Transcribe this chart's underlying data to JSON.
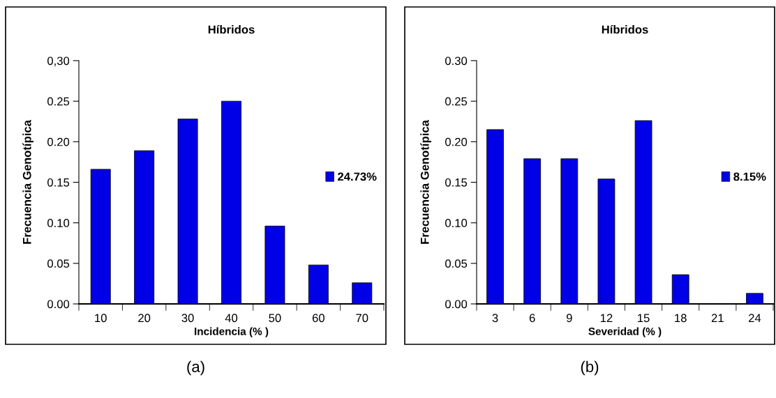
{
  "chart_data": [
    {
      "type": "bar",
      "title": "Híbridos",
      "xlabel": "Incidencia (% )",
      "ylabel": "Frecuencia Genotípica",
      "categories": [
        "10",
        "20",
        "30",
        "40",
        "50",
        "60",
        "70"
      ],
      "series": [
        {
          "name": "24.73%",
          "color": "#0000e6",
          "values": [
            0.166,
            0.189,
            0.228,
            0.25,
            0.096,
            0.048,
            0.026
          ]
        }
      ],
      "ylim": [
        0,
        0.3
      ],
      "yticks": [
        {
          "value": 0.3,
          "label": "0,30"
        },
        {
          "value": 0.25,
          "label": "0.25"
        },
        {
          "value": 0.2,
          "label": "0.20"
        },
        {
          "value": 0.15,
          "label": "0.15"
        },
        {
          "value": 0.1,
          "label": "0.10"
        },
        {
          "value": 0.05,
          "label": "0.05"
        },
        {
          "value": 0,
          "label": "0.00"
        }
      ],
      "grid": false,
      "legend": "right",
      "annotations": [
        "(a)"
      ]
    },
    {
      "type": "bar",
      "title": "Híbridos",
      "xlabel": "Severidad (% )",
      "ylabel": "Frecuencia Genotípica",
      "categories": [
        "3",
        "6",
        "9",
        "12",
        "15",
        "18",
        "21",
        "24"
      ],
      "series": [
        {
          "name": "8.15%",
          "color": "#0000e6",
          "values": [
            0.215,
            0.179,
            0.179,
            0.154,
            0.226,
            0.036,
            null,
            0.013
          ]
        }
      ],
      "ylim": [
        0,
        0.3
      ],
      "yticks": [
        {
          "value": 0.3,
          "label": "0.30"
        },
        {
          "value": 0.25,
          "label": "0.25"
        },
        {
          "value": 0.2,
          "label": "0.20"
        },
        {
          "value": 0.15,
          "label": "0.15"
        },
        {
          "value": 0.1,
          "label": "0.10"
        },
        {
          "value": 0.05,
          "label": "0.05"
        },
        {
          "value": 0,
          "label": "0.00"
        }
      ],
      "grid": false,
      "legend": "right",
      "annotations": [
        "(b)"
      ]
    }
  ]
}
